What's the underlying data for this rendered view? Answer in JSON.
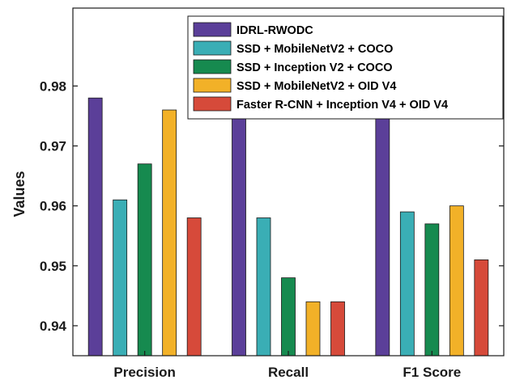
{
  "chart_data": {
    "type": "bar",
    "title": "",
    "xlabel": "",
    "ylabel": "Values",
    "categories": [
      "Precision",
      "Recall",
      "F1 Score"
    ],
    "ylim": [
      0.935,
      0.993
    ],
    "yticks": [
      "0.94",
      "0.95",
      "0.96",
      "0.97",
      "0.98"
    ],
    "grid": false,
    "legend_position": "top-right",
    "series": [
      {
        "name": "IDRL-RWODC",
        "color": "#5b3f99",
        "values": [
          0.978,
          0.975,
          0.977
        ]
      },
      {
        "name": "SSD + MobileNetV2 + COCO",
        "color": "#3aaeb5",
        "values": [
          0.961,
          0.958,
          0.959
        ]
      },
      {
        "name": "SSD + Inception V2 + COCO",
        "color": "#168a4f",
        "values": [
          0.967,
          0.948,
          0.957
        ]
      },
      {
        "name": "SSD + MobileNetV2 + OID V4",
        "color": "#f2b128",
        "values": [
          0.976,
          0.944,
          0.96
        ]
      },
      {
        "name": "Faster R-CNN + Inception V4 + OID V4",
        "color": "#d64a3a",
        "values": [
          0.958,
          0.944,
          0.951
        ]
      }
    ]
  }
}
